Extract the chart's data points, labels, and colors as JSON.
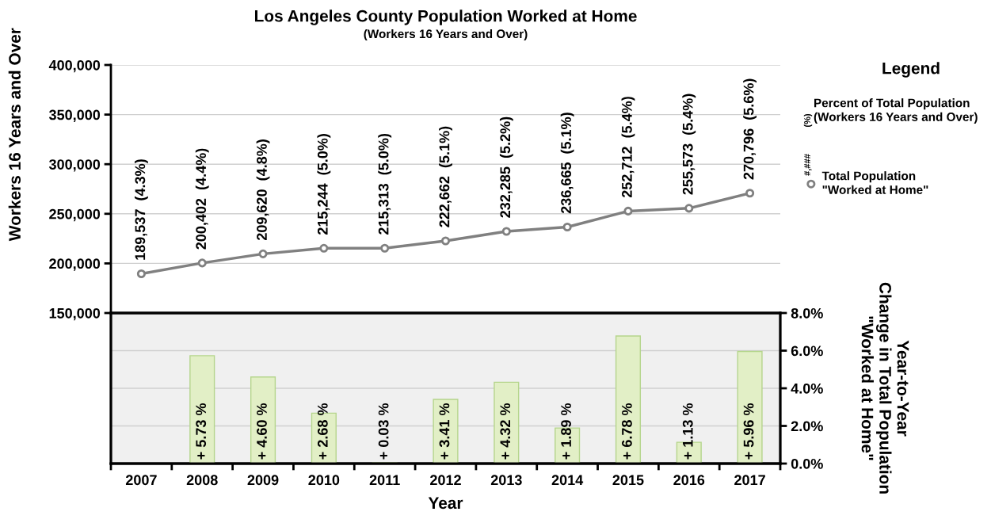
{
  "chart_data": [
    {
      "type": "line",
      "title": "Los Angeles County Population Worked at Home",
      "subtitle": "(Workers 16 Years and Over)",
      "ylabel": "Workers 16 Years and Over",
      "legend_title": "Legend",
      "categories": [
        "2007",
        "2008",
        "2009",
        "2010",
        "2011",
        "2012",
        "2013",
        "2014",
        "2015",
        "2016",
        "2017"
      ],
      "series": [
        {
          "name": "Total Population\n\"Worked at Home\"",
          "color": "#808080",
          "values": [
            189537,
            200402,
            209620,
            215244,
            215313,
            222662,
            232285,
            236665,
            252712,
            255573,
            270796
          ],
          "value_labels": [
            "189,537  (4.3%)",
            "200,402  (4.4%)",
            "209,620  (4.8%)",
            "215,244  (5.0%)",
            "215,313  (5.0%)",
            "222,662  (5.1%)",
            "232,285  (5.2%)",
            "236,665  (5.1%)",
            "252,712  (5.4%)",
            "255,573  (5.4%)",
            "270,796  (5.6%)"
          ]
        }
      ],
      "ylim": [
        150000,
        400000
      ],
      "yticks": [
        {
          "value": 150000,
          "label": "150,000"
        },
        {
          "value": 200000,
          "label": "200,000"
        },
        {
          "value": 250000,
          "label": "250,000"
        },
        {
          "value": 300000,
          "label": "300,000"
        },
        {
          "value": 350000,
          "label": "350,000"
        },
        {
          "value": 400000,
          "label": "400,000"
        }
      ],
      "marker": "circle",
      "grid": "y",
      "legend": "right",
      "tick_labels": "y",
      "annotations": [
        "(%)",
        "Percent of Total Population\n(Workers 16 Years and Over)",
        "#,###"
      ]
    },
    {
      "type": "bar",
      "xlabel": "Year",
      "y2label": "Year-to-Year\nChange in Total Population\n\"Worked at Home\"",
      "categories": [
        "2007",
        "2008",
        "2009",
        "2010",
        "2011",
        "2012",
        "2013",
        "2014",
        "2015",
        "2016",
        "2017"
      ],
      "series": [
        {
          "axis": "y2",
          "color": "#e2efc6",
          "values": [
            null,
            5.73,
            4.6,
            2.68,
            0.03,
            3.41,
            4.32,
            1.89,
            6.78,
            1.13,
            5.96
          ],
          "value_labels": [
            null,
            "+ 5.73 %",
            "+ 4.60 %",
            "+ 2.68 %",
            "+ 0.03 %",
            "+ 3.41 %",
            "+ 4.32 %",
            "+ 1.89 %",
            "+ 6.78 %",
            "+ 1.13 %",
            "+ 5.96 %"
          ]
        }
      ],
      "y2lim": [
        0,
        8
      ],
      "y2ticks": [
        {
          "value": 0,
          "label": "0.0%"
        },
        {
          "value": 2,
          "label": "2.0%"
        },
        {
          "value": 4,
          "label": "4.0%"
        },
        {
          "value": 6,
          "label": "6.0%"
        },
        {
          "value": 8,
          "label": "8.0%"
        }
      ],
      "grid": "y"
    }
  ]
}
